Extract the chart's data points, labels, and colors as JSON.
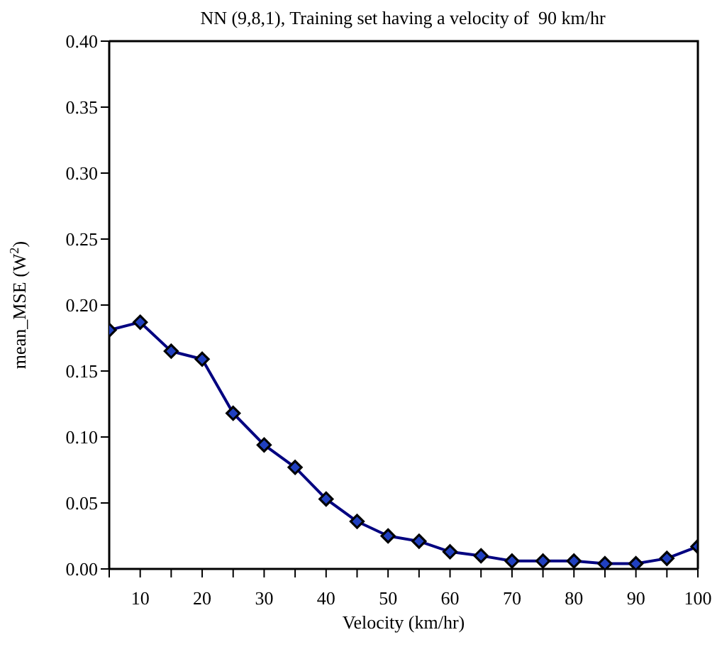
{
  "chart_data": {
    "type": "line",
    "title": "NN (9,8,1), Training set having a velocity of  90 km/hr",
    "xlabel": "Velocity (km/hr)",
    "ylabel": "mean_MSE (W$^{2}$)",
    "x": [
      5,
      10,
      15,
      20,
      25,
      30,
      35,
      40,
      45,
      50,
      55,
      60,
      65,
      70,
      75,
      80,
      85,
      90,
      95,
      100
    ],
    "series": [
      {
        "color": "#000080",
        "values": [
          0.181,
          0.187,
          0.165,
          0.159,
          0.118,
          0.094,
          0.077,
          0.053,
          0.036,
          0.025,
          0.021,
          0.013,
          0.01,
          0.006,
          0.006,
          0.006,
          0.004,
          0.004,
          0.008,
          0.017
        ]
      }
    ],
    "xlim": [
      5,
      100
    ],
    "xticks": [
      {
        "value": 5,
        "label": null
      },
      10,
      {
        "value": 15,
        "label": null
      },
      20,
      {
        "value": 25,
        "label": null
      },
      30,
      {
        "value": 35,
        "label": null
      },
      40,
      {
        "value": 45,
        "label": null
      },
      50,
      {
        "value": 55,
        "label": null
      },
      60,
      {
        "value": 65,
        "label": null
      },
      70,
      {
        "value": 75,
        "label": null
      },
      80,
      {
        "value": 85,
        "label": null
      },
      90,
      {
        "value": 95,
        "label": null
      },
      100
    ],
    "ylim": [
      0,
      0.4
    ],
    "yticks": [
      {
        "value": 0,
        "label": "0.00"
      },
      {
        "value": 0.05,
        "label": "0.05"
      },
      {
        "value": 0.1,
        "label": "0.10"
      },
      {
        "value": 0.15,
        "label": "0.15"
      },
      {
        "value": 0.2,
        "label": "0.20"
      },
      {
        "value": 0.25,
        "label": "0.25"
      },
      {
        "value": 0.3,
        "label": "0.30"
      },
      {
        "value": 0.35,
        "label": "0.35"
      },
      {
        "value": 0.4,
        "label": "0.40"
      }
    ],
    "grid": false,
    "legend": false,
    "marker": "diamond",
    "line_style": "solid"
  }
}
